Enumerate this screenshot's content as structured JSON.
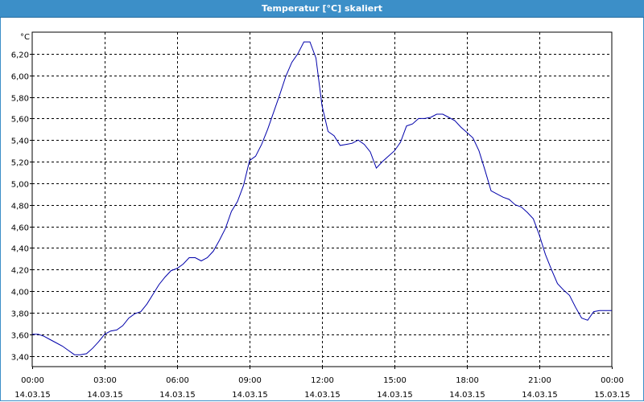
{
  "window": {
    "title": "Temperatur [°C] skaliert"
  },
  "chart_data": {
    "type": "line",
    "title": "Temperatur [°C] skaliert",
    "ylabel": "°C",
    "xlabel": "",
    "ylim": [
      3.3,
      6.4
    ],
    "xlim_hours": [
      0,
      24
    ],
    "grid": true,
    "y_ticks": [
      "3,40",
      "3,60",
      "3,80",
      "4,00",
      "4,20",
      "4,40",
      "4,60",
      "4,80",
      "5,00",
      "5,20",
      "5,40",
      "5,60",
      "5,80",
      "6,00",
      "6,20"
    ],
    "y_tick_values": [
      3.4,
      3.6,
      3.8,
      4.0,
      4.2,
      4.4,
      4.6,
      4.8,
      5.0,
      5.2,
      5.4,
      5.6,
      5.8,
      6.0,
      6.2
    ],
    "x_ticks": [
      {
        "time": "00:00",
        "date": "14.03.15"
      },
      {
        "time": "03:00",
        "date": "14.03.15"
      },
      {
        "time": "06:00",
        "date": "14.03.15"
      },
      {
        "time": "09:00",
        "date": "14.03.15"
      },
      {
        "time": "12:00",
        "date": "14.03.15"
      },
      {
        "time": "15:00",
        "date": "14.03.15"
      },
      {
        "time": "18:00",
        "date": "14.03.15"
      },
      {
        "time": "21:00",
        "date": "14.03.15"
      },
      {
        "time": "00:00",
        "date": "15.03.15"
      }
    ],
    "series": [
      {
        "color": "#0000aa",
        "x": [
          0.0,
          0.25,
          0.5,
          0.75,
          1.0,
          1.25,
          1.5,
          1.75,
          2.0,
          2.25,
          2.5,
          2.75,
          3.0,
          3.25,
          3.5,
          3.75,
          4.0,
          4.25,
          4.5,
          4.75,
          5.0,
          5.25,
          5.5,
          5.75,
          6.0,
          6.25,
          6.5,
          6.75,
          7.0,
          7.25,
          7.5,
          7.75,
          8.0,
          8.25,
          8.5,
          8.75,
          9.0,
          9.25,
          9.5,
          9.75,
          10.0,
          10.25,
          10.5,
          10.75,
          11.0,
          11.25,
          11.5,
          11.75,
          12.0,
          12.25,
          12.5,
          12.75,
          13.0,
          13.25,
          13.5,
          13.75,
          14.0,
          14.25,
          14.5,
          14.75,
          15.0,
          15.25,
          15.5,
          15.75,
          16.0,
          16.25,
          16.5,
          16.75,
          17.0,
          17.25,
          17.5,
          17.75,
          18.0,
          18.25,
          18.5,
          18.75,
          19.0,
          19.25,
          19.5,
          19.75,
          20.0,
          20.25,
          20.5,
          20.75,
          21.0,
          21.25,
          21.5,
          21.75,
          22.0,
          22.25,
          22.5,
          22.75,
          23.0,
          23.25,
          23.5,
          23.75,
          24.0
        ],
        "y": [
          3.6,
          3.6,
          3.58,
          3.55,
          3.52,
          3.49,
          3.45,
          3.41,
          3.41,
          3.42,
          3.47,
          3.53,
          3.6,
          3.63,
          3.64,
          3.68,
          3.75,
          3.79,
          3.81,
          3.88,
          3.97,
          4.06,
          4.13,
          4.19,
          4.21,
          4.25,
          4.31,
          4.31,
          4.28,
          4.31,
          4.37,
          4.47,
          4.58,
          4.74,
          4.83,
          4.98,
          5.21,
          5.25,
          5.36,
          5.5,
          5.66,
          5.82,
          5.99,
          6.12,
          6.2,
          6.31,
          6.31,
          6.16,
          5.72,
          5.48,
          5.44,
          5.35,
          5.36,
          5.37,
          5.4,
          5.36,
          5.29,
          5.14,
          5.2,
          5.25,
          5.3,
          5.38,
          5.53,
          5.55,
          5.6,
          5.6,
          5.61,
          5.64,
          5.64,
          5.61,
          5.58,
          5.52,
          5.47,
          5.42,
          5.3,
          5.12,
          4.93,
          4.9,
          4.87,
          4.85,
          4.8,
          4.78,
          4.73,
          4.67,
          4.52,
          4.34,
          4.2,
          4.07,
          4.01,
          3.96,
          3.85,
          3.75,
          3.73,
          3.81,
          3.82,
          3.82,
          3.82
        ]
      }
    ]
  }
}
